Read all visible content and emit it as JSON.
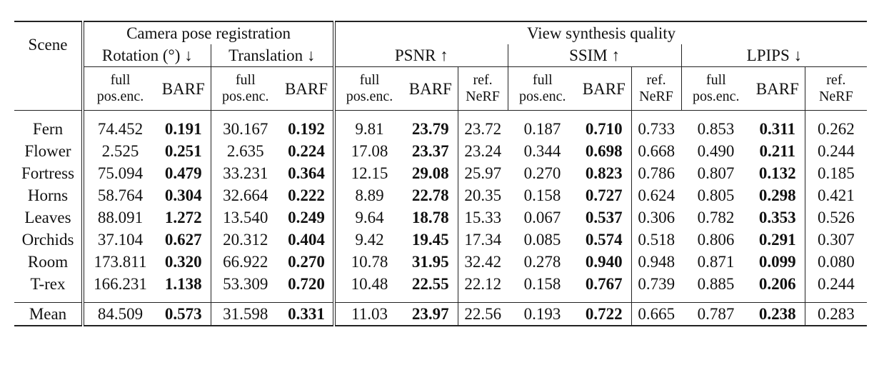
{
  "header": {
    "scene": "Scene",
    "camera_group": "Camera pose registration",
    "view_group": "View synthesis quality",
    "metrics": {
      "rotation": "Rotation (°) ↓",
      "translation": "Translation ↓",
      "psnr": "PSNR ↑",
      "ssim": "SSIM ↑",
      "lpips": "LPIPS ↓"
    },
    "sub": {
      "full_1": "full",
      "full_2": "pos.enc.",
      "barf": "BARF",
      "ref_1": "ref.",
      "ref_2": "NeRF"
    }
  },
  "rows": [
    {
      "scene": "Fern",
      "rot_full": "74.452",
      "rot_barf": "0.191",
      "tr_full": "30.167",
      "tr_barf": "0.192",
      "psnr_full": "9.81",
      "psnr_barf": "23.79",
      "psnr_ref": "23.72",
      "ssim_full": "0.187",
      "ssim_barf": "0.710",
      "ssim_ref": "0.733",
      "lpips_full": "0.853",
      "lpips_barf": "0.311",
      "lpips_ref": "0.262"
    },
    {
      "scene": "Flower",
      "rot_full": "2.525",
      "rot_barf": "0.251",
      "tr_full": "2.635",
      "tr_barf": "0.224",
      "psnr_full": "17.08",
      "psnr_barf": "23.37",
      "psnr_ref": "23.24",
      "ssim_full": "0.344",
      "ssim_barf": "0.698",
      "ssim_ref": "0.668",
      "lpips_full": "0.490",
      "lpips_barf": "0.211",
      "lpips_ref": "0.244"
    },
    {
      "scene": "Fortress",
      "rot_full": "75.094",
      "rot_barf": "0.479",
      "tr_full": "33.231",
      "tr_barf": "0.364",
      "psnr_full": "12.15",
      "psnr_barf": "29.08",
      "psnr_ref": "25.97",
      "ssim_full": "0.270",
      "ssim_barf": "0.823",
      "ssim_ref": "0.786",
      "lpips_full": "0.807",
      "lpips_barf": "0.132",
      "lpips_ref": "0.185"
    },
    {
      "scene": "Horns",
      "rot_full": "58.764",
      "rot_barf": "0.304",
      "tr_full": "32.664",
      "tr_barf": "0.222",
      "psnr_full": "8.89",
      "psnr_barf": "22.78",
      "psnr_ref": "20.35",
      "ssim_full": "0.158",
      "ssim_barf": "0.727",
      "ssim_ref": "0.624",
      "lpips_full": "0.805",
      "lpips_barf": "0.298",
      "lpips_ref": "0.421"
    },
    {
      "scene": "Leaves",
      "rot_full": "88.091",
      "rot_barf": "1.272",
      "tr_full": "13.540",
      "tr_barf": "0.249",
      "psnr_full": "9.64",
      "psnr_barf": "18.78",
      "psnr_ref": "15.33",
      "ssim_full": "0.067",
      "ssim_barf": "0.537",
      "ssim_ref": "0.306",
      "lpips_full": "0.782",
      "lpips_barf": "0.353",
      "lpips_ref": "0.526"
    },
    {
      "scene": "Orchids",
      "rot_full": "37.104",
      "rot_barf": "0.627",
      "tr_full": "20.312",
      "tr_barf": "0.404",
      "psnr_full": "9.42",
      "psnr_barf": "19.45",
      "psnr_ref": "17.34",
      "ssim_full": "0.085",
      "ssim_barf": "0.574",
      "ssim_ref": "0.518",
      "lpips_full": "0.806",
      "lpips_barf": "0.291",
      "lpips_ref": "0.307"
    },
    {
      "scene": "Room",
      "rot_full": "173.811",
      "rot_barf": "0.320",
      "tr_full": "66.922",
      "tr_barf": "0.270",
      "psnr_full": "10.78",
      "psnr_barf": "31.95",
      "psnr_ref": "32.42",
      "ssim_full": "0.278",
      "ssim_barf": "0.940",
      "ssim_ref": "0.948",
      "lpips_full": "0.871",
      "lpips_barf": "0.099",
      "lpips_ref": "0.080"
    },
    {
      "scene": "T-rex",
      "rot_full": "166.231",
      "rot_barf": "1.138",
      "tr_full": "53.309",
      "tr_barf": "0.720",
      "psnr_full": "10.48",
      "psnr_barf": "22.55",
      "psnr_ref": "22.12",
      "ssim_full": "0.158",
      "ssim_barf": "0.767",
      "ssim_ref": "0.739",
      "lpips_full": "0.885",
      "lpips_barf": "0.206",
      "lpips_ref": "0.244"
    }
  ],
  "mean": {
    "scene": "Mean",
    "rot_full": "84.509",
    "rot_barf": "0.573",
    "tr_full": "31.598",
    "tr_barf": "0.331",
    "psnr_full": "11.03",
    "psnr_barf": "23.97",
    "psnr_ref": "22.56",
    "ssim_full": "0.193",
    "ssim_barf": "0.722",
    "ssim_ref": "0.665",
    "lpips_full": "0.787",
    "lpips_barf": "0.238",
    "lpips_ref": "0.283"
  }
}
